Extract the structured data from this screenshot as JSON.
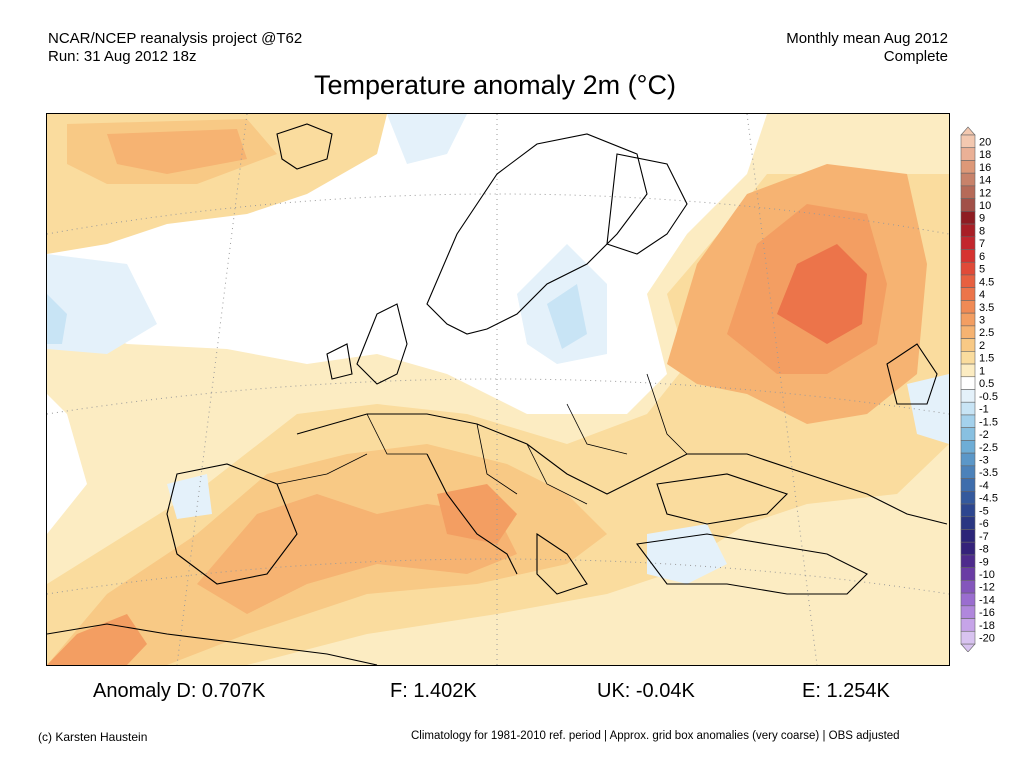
{
  "header": {
    "left_line1": "NCAR/NCEP reanalysis project @T62",
    "left_line2": "Run: 31 Aug 2012 18z",
    "right_line1": "Monthly mean Aug 2012",
    "right_line2": "Complete"
  },
  "title": "Temperature anomaly 2m (°C)",
  "stats": {
    "d": "Anomaly D: 0.707K",
    "f": "F: 1.402K",
    "uk": "UK: -0.04K",
    "e": "E: 1.254K"
  },
  "footer": {
    "left": "(c) Karsten Haustein",
    "right": "Climatology for 1981-2010 ref. period | Approx. grid box anomalies (very coarse) | OBS adjusted"
  },
  "legend": {
    "labels": [
      "20",
      "18",
      "16",
      "14",
      "12",
      "10",
      "9",
      "8",
      "7",
      "6",
      "5",
      "4.5",
      "4",
      "3.5",
      "3",
      "2.5",
      "2",
      "1.5",
      "1",
      "0.5",
      "-0.5",
      "-1",
      "-1.5",
      "-2",
      "-2.5",
      "-3",
      "-3.5",
      "-4",
      "-4.5",
      "-5",
      "-6",
      "-7",
      "-8",
      "-9",
      "-10",
      "-12",
      "-14",
      "-16",
      "-18",
      "-20"
    ],
    "colors": [
      "#f3c8b0",
      "#eab096",
      "#dd9878",
      "#c8826a",
      "#b66a58",
      "#a15048",
      "#8e1c22",
      "#a81f26",
      "#c3262d",
      "#d63330",
      "#e04a38",
      "#e76040",
      "#ec744a",
      "#f08a55",
      "#f39e62",
      "#f6b372",
      "#f8c985",
      "#fadc9e",
      "#fcecc2",
      "#ffffff",
      "#e4f1fa",
      "#c8e4f5",
      "#a4d1ec",
      "#88c0e1",
      "#6eadd6",
      "#5b97c8",
      "#4c82ba",
      "#3e6dac",
      "#34599d",
      "#2d468f",
      "#2a3682",
      "#2b2578",
      "#34227a",
      "#4e2b8c",
      "#6a3ca4",
      "#8456bc",
      "#9a6dcf",
      "#b087dc",
      "#c6a4e8",
      "#d8c3f0"
    ],
    "cap_top": "#f3c8b0",
    "cap_bottom": "#d8c3f0"
  },
  "map": {
    "background": "#ffffff",
    "anomaly_colors": {
      "neg_1": "#e4f1fa",
      "neg_2": "#c8e4f5",
      "pos_1": "#fcecc2",
      "pos_2": "#fadc9e",
      "pos_3": "#f8c985",
      "pos_4": "#f6b372",
      "pos_5": "#f39e62",
      "pos_6": "#ec744a",
      "pos_7": "#e76040"
    }
  }
}
